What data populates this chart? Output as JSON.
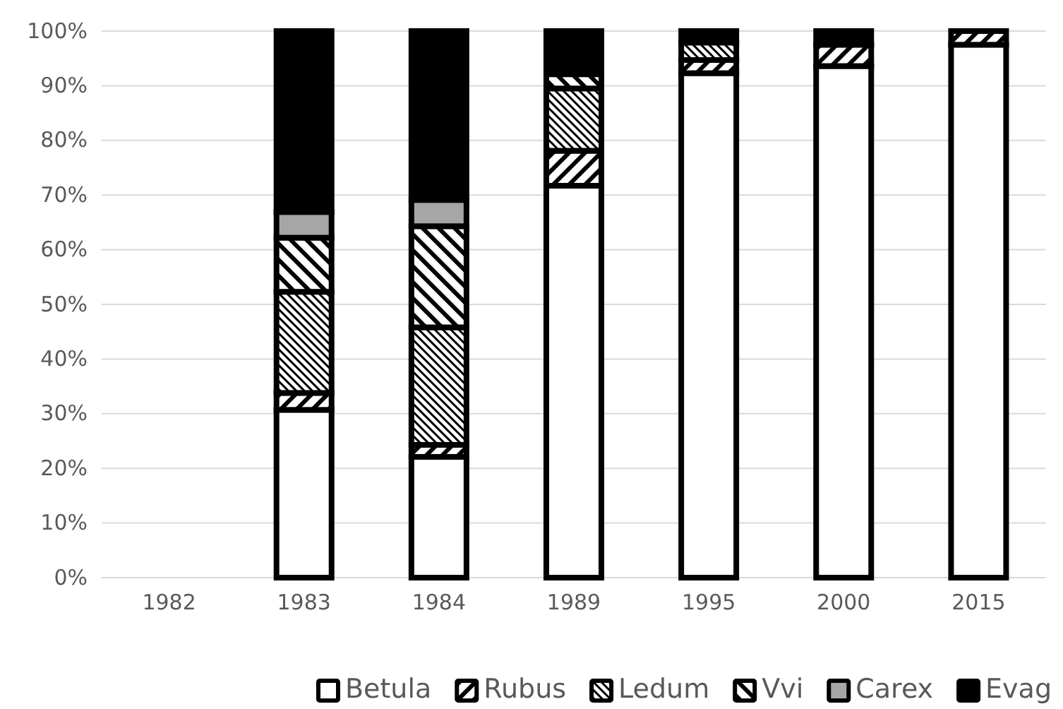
{
  "chart_data": {
    "type": "bar",
    "stacked": true,
    "categories": [
      "1982",
      "1983",
      "1984",
      "1989",
      "1995",
      "2000",
      "2015"
    ],
    "series": [
      {
        "name": "Betula",
        "color": "#ffffff",
        "values": [
          null,
          30.7,
          22.1,
          71.7,
          92.3,
          93.6,
          97.5
        ]
      },
      {
        "name": "Rubus",
        "color": "#000000",
        "values": [
          null,
          3.1,
          2.2,
          6.4,
          2.4,
          3.9,
          2.5
        ]
      },
      {
        "name": "Ledum",
        "color": "#000000",
        "values": [
          null,
          18.5,
          21.5,
          11.4,
          3.2,
          0,
          0
        ]
      },
      {
        "name": "Vvi",
        "color": "#000000",
        "values": [
          null,
          9.9,
          18.5,
          2.6,
          0,
          0,
          0
        ]
      },
      {
        "name": "Carex",
        "color": "#a6a6a6",
        "values": [
          null,
          4.7,
          4.8,
          0,
          0,
          0,
          0
        ]
      },
      {
        "name": "Evag",
        "color": "#000000",
        "values": [
          null,
          33.1,
          30.9,
          7.9,
          2.1,
          2.5,
          0
        ]
      }
    ],
    "ylim": [
      0,
      100
    ],
    "yticks": [
      {
        "value": 0,
        "label": "0%"
      },
      {
        "value": 10,
        "label": "10%"
      },
      {
        "value": 20,
        "label": "20%"
      },
      {
        "value": 30,
        "label": "30%"
      },
      {
        "value": 40,
        "label": "40%"
      },
      {
        "value": 50,
        "label": "50%"
      },
      {
        "value": 60,
        "label": "60%"
      },
      {
        "value": 70,
        "label": "70%"
      },
      {
        "value": 80,
        "label": "80%"
      },
      {
        "value": 90,
        "label": "90%"
      },
      {
        "value": 100,
        "label": "100%"
      }
    ],
    "grid": "y",
    "legend": "bottom"
  }
}
